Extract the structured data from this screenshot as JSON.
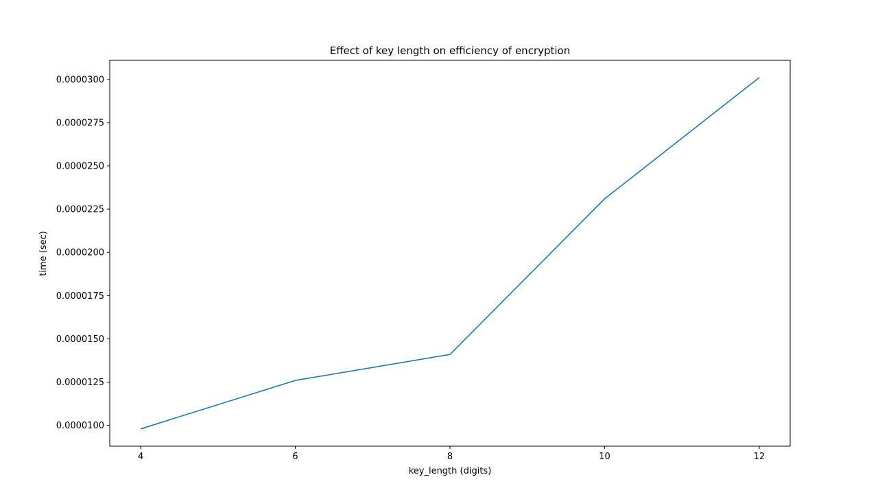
{
  "chart_data": {
    "type": "line",
    "title": "Effect of key length on efficiency of encryption",
    "xlabel": "key_length (digits)",
    "ylabel": "time (sec)",
    "x": [
      4,
      6,
      8,
      10,
      12
    ],
    "series": [
      {
        "values": [
          9.8e-06,
          1.26e-05,
          1.41e-05,
          2.31e-05,
          3.01e-05
        ]
      }
    ],
    "xlim": [
      3.6,
      12.4
    ],
    "ylim": [
      8.8e-06,
      3.11e-05
    ],
    "xticks": [
      4,
      6,
      8,
      10,
      12
    ],
    "xtick_labels": [
      "4",
      "6",
      "8",
      "10",
      "12"
    ],
    "yticks": [
      1e-05,
      1.25e-05,
      1.5e-05,
      1.75e-05,
      2e-05,
      2.25e-05,
      2.5e-05,
      2.75e-05,
      3e-05
    ],
    "ytick_labels": [
      "0.0000100",
      "0.0000125",
      "0.0000150",
      "0.0000175",
      "0.0000200",
      "0.0000225",
      "0.0000250",
      "0.0000275",
      "0.0000300"
    ],
    "grid": false,
    "line_color": "#1f77b4"
  }
}
